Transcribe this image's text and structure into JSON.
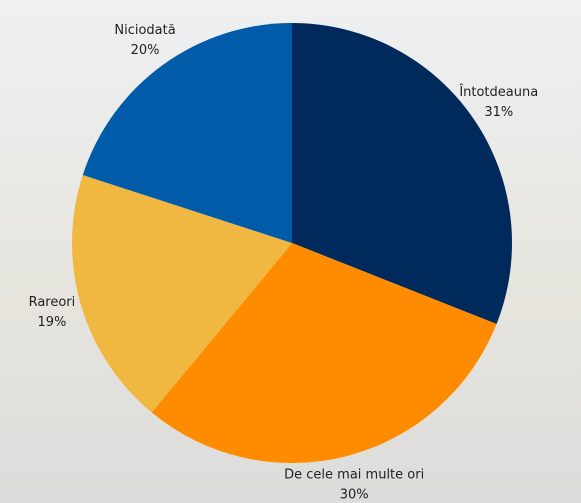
{
  "chart_data": {
    "type": "pie",
    "categories": [
      "Întotdeauna",
      "De cele mai multe ori",
      "Rareori",
      "Niciodată"
    ],
    "values": [
      31,
      30,
      19,
      20
    ],
    "value_labels": [
      "31%",
      "30%",
      "19%",
      "20%"
    ],
    "colors": [
      "#002a5c",
      "#ff8c00",
      "#f0b840",
      "#005ca8"
    ]
  }
}
